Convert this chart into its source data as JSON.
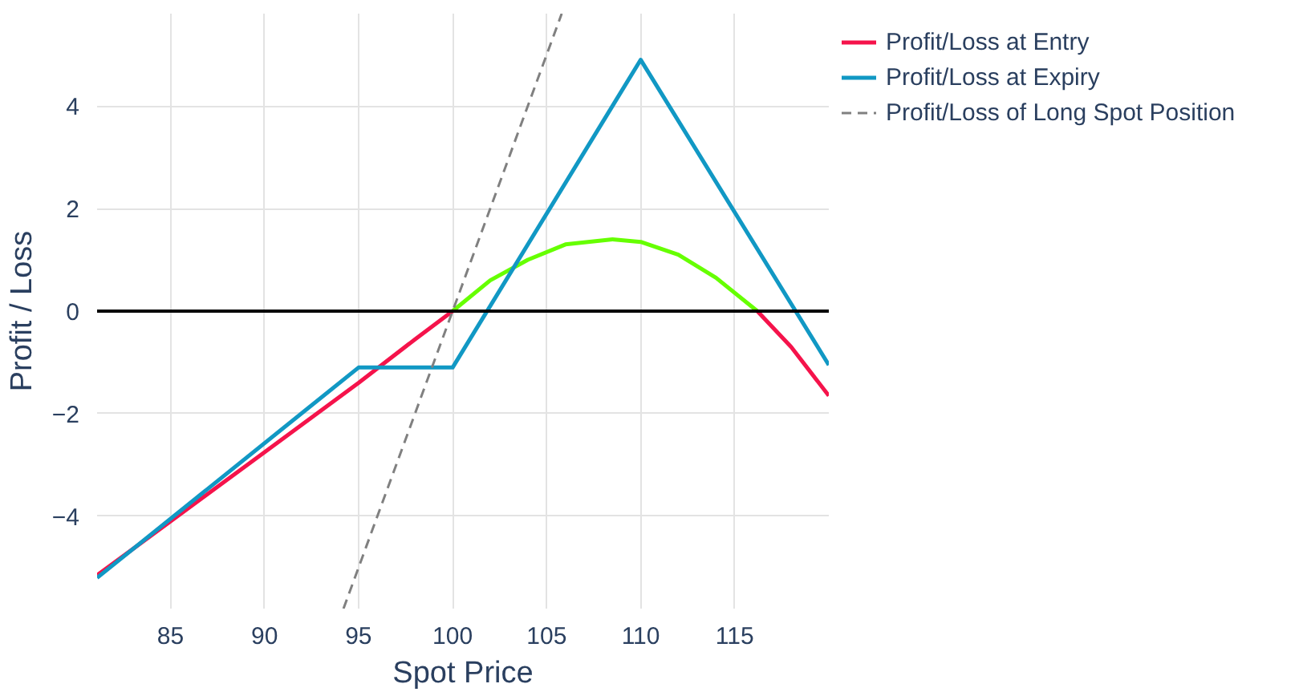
{
  "chart_data": {
    "type": "line",
    "xlabel": "Spot Price",
    "ylabel": "Profit / Loss",
    "xlim": [
      81.1,
      120
    ],
    "xticks": [
      85,
      90,
      95,
      100,
      105,
      110,
      115
    ],
    "ylim": [
      -5.8,
      5.8
    ],
    "yticks": [
      {
        "value": -4,
        "label": "−4"
      },
      {
        "value": -2,
        "label": "−2"
      },
      0,
      2,
      4
    ],
    "grid": true,
    "legend": "top right",
    "line_style": "solid",
    "marker": "none",
    "ref_lines": [
      {
        "axis": "y",
        "value": 0,
        "color": "#000000"
      }
    ],
    "series": [
      {
        "name": "Profit/Loss at Entry",
        "color": "#f5134b",
        "x": [
          81.1,
          85,
          90,
          95,
          98,
          100
        ],
        "values": [
          -5.15,
          -4.1,
          -2.75,
          -1.4,
          -0.55,
          0
        ]
      },
      {
        "color": "#66ff00",
        "x": [
          100,
          102,
          104,
          106,
          108.5,
          110,
          112,
          114,
          116.2
        ],
        "values": [
          0,
          0.6,
          1.0,
          1.3,
          1.4,
          1.35,
          1.1,
          0.65,
          0
        ]
      },
      {
        "color": "#f5134b",
        "x": [
          116.2,
          118,
          120
        ],
        "values": [
          0,
          -0.7,
          -1.65
        ]
      },
      {
        "name": "Profit/Loss at Expiry",
        "color": "#1198c4",
        "x": [
          81.1,
          95,
          100,
          110,
          120
        ],
        "values": [
          -5.2,
          -1.1,
          -1.1,
          4.9,
          -1.05
        ]
      },
      {
        "name": "Profit/Loss of Long Spot Position",
        "color": "#808080",
        "line_style": "dashed",
        "x": [
          94.2,
          105.8
        ],
        "values": [
          -5.8,
          5.8
        ]
      }
    ]
  }
}
